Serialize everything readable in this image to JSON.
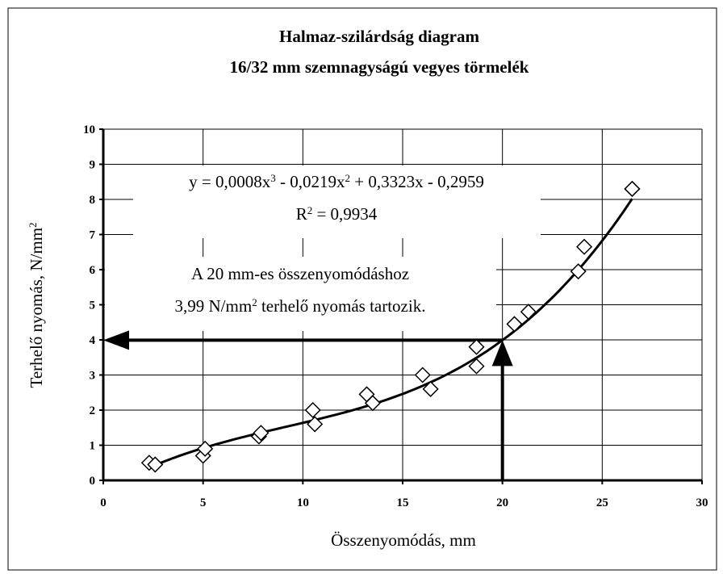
{
  "chart_data": {
    "type": "scatter",
    "title": [
      "Halmaz-szilárdság diagram",
      "16/32 mm szemnagyságú vegyes törmelék"
    ],
    "xlabel": "Összenyomódás, mm",
    "ylabel": [
      "Terhelő nyomás, N/mm",
      "2"
    ],
    "x": [
      2.3,
      2.6,
      5.0,
      5.1,
      7.8,
      7.9,
      10.5,
      10.6,
      13.2,
      13.5,
      16.0,
      16.4,
      18.7,
      18.7,
      20.6,
      21.3,
      23.8,
      24.1,
      26.5,
      26.5
    ],
    "values": [
      0.5,
      0.45,
      0.7,
      0.9,
      1.25,
      1.35,
      2.0,
      1.6,
      2.45,
      2.2,
      3.0,
      2.6,
      3.8,
      3.25,
      4.45,
      4.8,
      5.95,
      6.65,
      8.3,
      8.3
    ],
    "xlim": [
      0,
      30
    ],
    "xticks": [
      0,
      5,
      10,
      15,
      20,
      25,
      30
    ],
    "ylim": [
      0,
      10
    ],
    "yticks": [
      0,
      1,
      2,
      3,
      4,
      5,
      6,
      7,
      8,
      9,
      10
    ],
    "grid": true,
    "trendline": {
      "coefficients": [
        0.0008,
        -0.0219,
        0.3323,
        -0.2959
      ],
      "xlim": [
        2.3,
        26.5
      ]
    },
    "equation": [
      "y = 0,0008x",
      "3",
      " - 0,0219x",
      "2",
      " + 0,3323x - 0,2959"
    ],
    "r_squared": [
      "R",
      "2",
      " = 0,9934"
    ],
    "annotation": [
      [
        "A 20 mm-es összenyomódáshoz"
      ],
      [
        "3,99 N/mm",
        "2",
        "  terhelő nyomás tartozik."
      ]
    ],
    "arrow_point": {
      "x": 20,
      "y": 3.99
    }
  }
}
